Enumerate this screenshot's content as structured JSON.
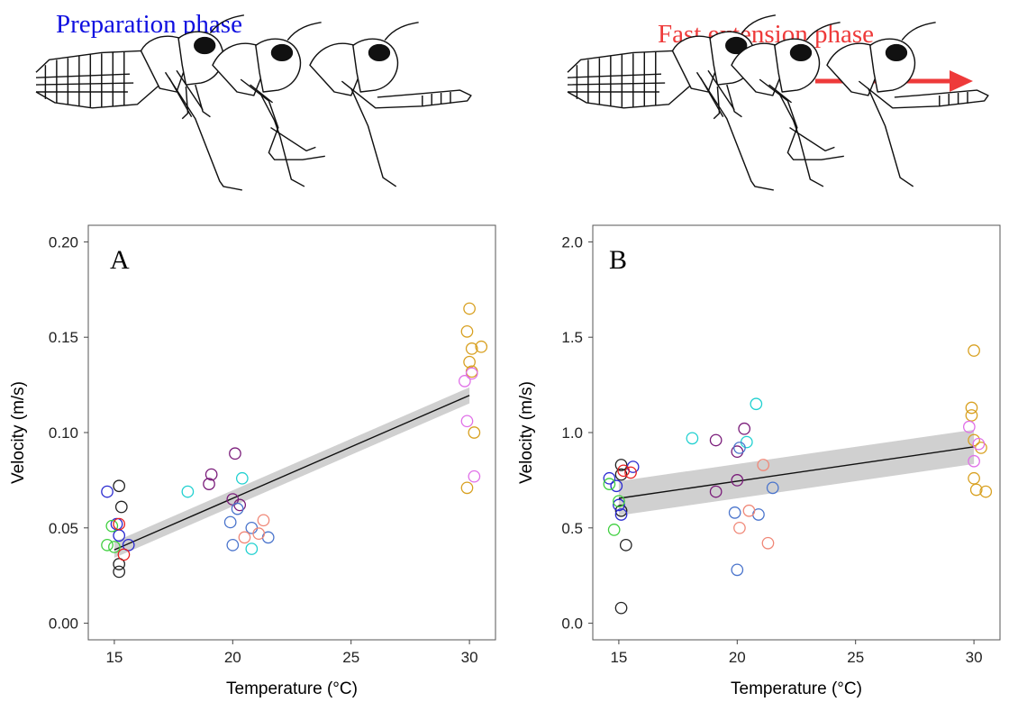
{
  "phases": {
    "left": {
      "label": "Preparation phase",
      "color": "#1010e0"
    },
    "right": {
      "label": "Fast extension phase",
      "color": "#ee3a3a"
    }
  },
  "colors": {
    "black": "#222222",
    "blue": "#2a2ad0",
    "green": "#3ecf3e",
    "red": "#e82020",
    "steelblue": "#4a74cc",
    "cyan": "#20d0d0",
    "purple": "#7a1c7a",
    "salmon": "#f08878",
    "orange": "#d8a020",
    "violet": "#e070e8"
  },
  "chart_data": [
    {
      "type": "scatter",
      "panel": "A",
      "title": "",
      "xlabel": "Temperature (°C)",
      "ylabel": "Velocity (m/s)",
      "xlim": [
        13.9,
        31.1
      ],
      "ylim": [
        -0.0087,
        0.2087
      ],
      "xticks": [
        15,
        20,
        25,
        30
      ],
      "xtick_labels": [
        "15",
        "20",
        "25",
        "30"
      ],
      "yticks": [
        0.0,
        0.05,
        0.1,
        0.15,
        0.2
      ],
      "ytick_labels": [
        "0.00",
        "0.05",
        "0.10",
        "0.15",
        "0.20"
      ],
      "grid": false,
      "trend": {
        "x": [
          15,
          30
        ],
        "y": [
          0.0385,
          0.1195
        ],
        "band": 0.0042,
        "band_color": "#c8c8c8"
      },
      "points": [
        {
          "x": 15.2,
          "y": 0.072,
          "c": "black"
        },
        {
          "x": 15.3,
          "y": 0.061,
          "c": "black"
        },
        {
          "x": 15.2,
          "y": 0.031,
          "c": "black"
        },
        {
          "x": 15.2,
          "y": 0.027,
          "c": "black"
        },
        {
          "x": 14.7,
          "y": 0.069,
          "c": "blue"
        },
        {
          "x": 15.1,
          "y": 0.052,
          "c": "blue"
        },
        {
          "x": 15.2,
          "y": 0.046,
          "c": "blue"
        },
        {
          "x": 15.6,
          "y": 0.041,
          "c": "blue"
        },
        {
          "x": 14.9,
          "y": 0.051,
          "c": "green"
        },
        {
          "x": 14.7,
          "y": 0.041,
          "c": "green"
        },
        {
          "x": 15.0,
          "y": 0.04,
          "c": "green"
        },
        {
          "x": 15.2,
          "y": 0.052,
          "c": "red"
        },
        {
          "x": 15.4,
          "y": 0.036,
          "c": "red"
        },
        {
          "x": 18.1,
          "y": 0.069,
          "c": "cyan"
        },
        {
          "x": 20.4,
          "y": 0.076,
          "c": "cyan"
        },
        {
          "x": 20.8,
          "y": 0.039,
          "c": "cyan"
        },
        {
          "x": 19.1,
          "y": 0.078,
          "c": "purple"
        },
        {
          "x": 19.0,
          "y": 0.073,
          "c": "purple"
        },
        {
          "x": 20.1,
          "y": 0.089,
          "c": "purple"
        },
        {
          "x": 20.0,
          "y": 0.065,
          "c": "purple"
        },
        {
          "x": 20.3,
          "y": 0.062,
          "c": "purple"
        },
        {
          "x": 19.9,
          "y": 0.053,
          "c": "steelblue"
        },
        {
          "x": 20.0,
          "y": 0.041,
          "c": "steelblue"
        },
        {
          "x": 20.2,
          "y": 0.06,
          "c": "steelblue"
        },
        {
          "x": 20.8,
          "y": 0.05,
          "c": "steelblue"
        },
        {
          "x": 21.5,
          "y": 0.045,
          "c": "steelblue"
        },
        {
          "x": 20.5,
          "y": 0.045,
          "c": "salmon"
        },
        {
          "x": 21.1,
          "y": 0.047,
          "c": "salmon"
        },
        {
          "x": 21.3,
          "y": 0.054,
          "c": "salmon"
        },
        {
          "x": 30.0,
          "y": 0.165,
          "c": "orange"
        },
        {
          "x": 29.9,
          "y": 0.153,
          "c": "orange"
        },
        {
          "x": 30.1,
          "y": 0.144,
          "c": "orange"
        },
        {
          "x": 30.5,
          "y": 0.145,
          "c": "orange"
        },
        {
          "x": 30.0,
          "y": 0.137,
          "c": "orange"
        },
        {
          "x": 30.1,
          "y": 0.132,
          "c": "orange"
        },
        {
          "x": 30.2,
          "y": 0.1,
          "c": "orange"
        },
        {
          "x": 29.9,
          "y": 0.071,
          "c": "orange"
        },
        {
          "x": 29.8,
          "y": 0.127,
          "c": "violet"
        },
        {
          "x": 30.1,
          "y": 0.131,
          "c": "violet"
        },
        {
          "x": 29.9,
          "y": 0.106,
          "c": "violet"
        },
        {
          "x": 30.2,
          "y": 0.077,
          "c": "violet"
        }
      ]
    },
    {
      "type": "scatter",
      "panel": "B",
      "title": "",
      "xlabel": "Temperature (°C)",
      "ylabel": "Velocity (m/s)",
      "xlim": [
        13.9,
        31.1
      ],
      "ylim": [
        -0.087,
        2.087
      ],
      "xticks": [
        15,
        20,
        25,
        30
      ],
      "xtick_labels": [
        "15",
        "20",
        "25",
        "30"
      ],
      "yticks": [
        0.0,
        0.5,
        1.0,
        1.5,
        2.0
      ],
      "ytick_labels": [
        "0.0",
        "0.5",
        "1.0",
        "1.5",
        "2.0"
      ],
      "grid": false,
      "trend": {
        "x": [
          15,
          30
        ],
        "y": [
          0.655,
          0.925
        ],
        "band": 0.09,
        "band_color": "#c8c8c8"
      },
      "points": [
        {
          "x": 15.1,
          "y": 0.83,
          "c": "black"
        },
        {
          "x": 15.1,
          "y": 0.78,
          "c": "black"
        },
        {
          "x": 15.1,
          "y": 0.59,
          "c": "black"
        },
        {
          "x": 15.3,
          "y": 0.41,
          "c": "black"
        },
        {
          "x": 15.1,
          "y": 0.08,
          "c": "black"
        },
        {
          "x": 14.6,
          "y": 0.76,
          "c": "blue"
        },
        {
          "x": 14.9,
          "y": 0.72,
          "c": "blue"
        },
        {
          "x": 15.0,
          "y": 0.62,
          "c": "blue"
        },
        {
          "x": 15.1,
          "y": 0.57,
          "c": "blue"
        },
        {
          "x": 15.6,
          "y": 0.82,
          "c": "blue"
        },
        {
          "x": 14.6,
          "y": 0.73,
          "c": "green"
        },
        {
          "x": 15.0,
          "y": 0.64,
          "c": "green"
        },
        {
          "x": 14.8,
          "y": 0.49,
          "c": "green"
        },
        {
          "x": 15.2,
          "y": 0.8,
          "c": "red"
        },
        {
          "x": 15.5,
          "y": 0.79,
          "c": "red"
        },
        {
          "x": 18.1,
          "y": 0.97,
          "c": "cyan"
        },
        {
          "x": 20.4,
          "y": 0.95,
          "c": "cyan"
        },
        {
          "x": 20.8,
          "y": 1.15,
          "c": "cyan"
        },
        {
          "x": 19.1,
          "y": 0.96,
          "c": "purple"
        },
        {
          "x": 19.1,
          "y": 0.69,
          "c": "purple"
        },
        {
          "x": 20.0,
          "y": 0.9,
          "c": "purple"
        },
        {
          "x": 20.3,
          "y": 1.02,
          "c": "purple"
        },
        {
          "x": 20.0,
          "y": 0.75,
          "c": "purple"
        },
        {
          "x": 19.9,
          "y": 0.58,
          "c": "steelblue"
        },
        {
          "x": 20.0,
          "y": 0.28,
          "c": "steelblue"
        },
        {
          "x": 20.1,
          "y": 0.92,
          "c": "steelblue"
        },
        {
          "x": 20.9,
          "y": 0.57,
          "c": "steelblue"
        },
        {
          "x": 21.5,
          "y": 0.71,
          "c": "steelblue"
        },
        {
          "x": 20.1,
          "y": 0.5,
          "c": "salmon"
        },
        {
          "x": 20.5,
          "y": 0.59,
          "c": "salmon"
        },
        {
          "x": 21.1,
          "y": 0.83,
          "c": "salmon"
        },
        {
          "x": 21.3,
          "y": 0.42,
          "c": "salmon"
        },
        {
          "x": 30.0,
          "y": 1.43,
          "c": "orange"
        },
        {
          "x": 29.9,
          "y": 1.13,
          "c": "orange"
        },
        {
          "x": 29.9,
          "y": 1.09,
          "c": "orange"
        },
        {
          "x": 30.3,
          "y": 0.92,
          "c": "orange"
        },
        {
          "x": 30.0,
          "y": 0.76,
          "c": "orange"
        },
        {
          "x": 30.1,
          "y": 0.7,
          "c": "orange"
        },
        {
          "x": 30.5,
          "y": 0.69,
          "c": "orange"
        },
        {
          "x": 30.0,
          "y": 0.96,
          "c": "orange"
        },
        {
          "x": 29.8,
          "y": 1.03,
          "c": "violet"
        },
        {
          "x": 30.0,
          "y": 0.85,
          "c": "violet"
        },
        {
          "x": 30.2,
          "y": 0.94,
          "c": "violet"
        }
      ]
    }
  ]
}
